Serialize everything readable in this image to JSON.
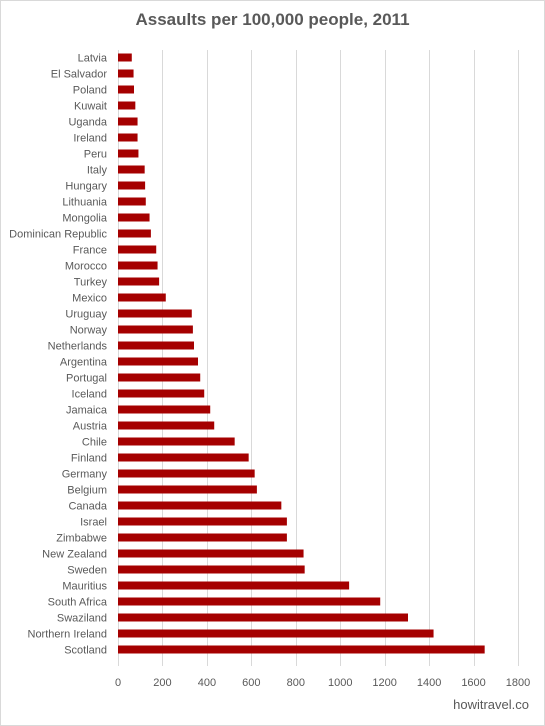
{
  "chart_data": {
    "type": "bar",
    "orientation": "horizontal",
    "title": "Assaults per 100,000 people, 2011",
    "categories": [
      "Latvia",
      "El Salvador",
      "Poland",
      "Kuwait",
      "Uganda",
      "Ireland",
      "Peru",
      "Italy",
      "Hungary",
      "Lithuania",
      "Mongolia",
      "Dominican Republic",
      "France",
      "Morocco",
      "Turkey",
      "Mexico",
      "Uruguay",
      "Norway",
      "Netherlands",
      "Argentina",
      "Portugal",
      "Iceland",
      "Jamaica",
      "Austria",
      "Chile",
      "Finland",
      "Germany",
      "Belgium",
      "Canada",
      "Israel",
      "Zimbabwe",
      "New Zealand",
      "Sweden",
      "Mauritius",
      "South Africa",
      "Swaziland",
      "Northern Ireland",
      "Scotland"
    ],
    "values": [
      62,
      70,
      72,
      78,
      88,
      88,
      92,
      120,
      122,
      125,
      142,
      148,
      172,
      178,
      185,
      215,
      332,
      337,
      342,
      360,
      370,
      388,
      415,
      433,
      525,
      588,
      615,
      625,
      735,
      760,
      760,
      835,
      840,
      1040,
      1180,
      1305,
      1420,
      1650
    ],
    "xlim": [
      0,
      1800
    ],
    "xticks": [
      0,
      200,
      400,
      600,
      800,
      1000,
      1200,
      1400,
      1600,
      1800
    ],
    "xlabel": "",
    "ylabel": "",
    "grid": "vertical",
    "legend": "none",
    "bar_color": "#a50000",
    "gridline_color": "#d9d9d9",
    "text_color": "#595959"
  },
  "watermark": "howitravel.co"
}
